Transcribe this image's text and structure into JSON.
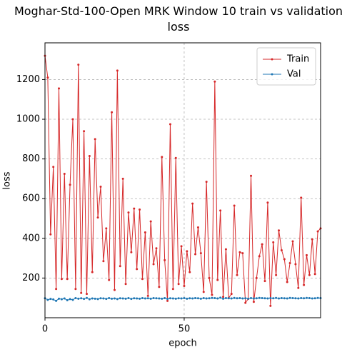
{
  "chart_data": {
    "type": "line",
    "title": "Moghar-Std-100-Open MRK Window 10 train vs validation loss",
    "xlabel": "epoch",
    "ylabel": "loss",
    "x": [
      0,
      1,
      2,
      3,
      4,
      5,
      6,
      7,
      8,
      9,
      10,
      11,
      12,
      13,
      14,
      15,
      16,
      17,
      18,
      19,
      20,
      21,
      22,
      23,
      24,
      25,
      26,
      27,
      28,
      29,
      30,
      31,
      32,
      33,
      34,
      35,
      36,
      37,
      38,
      39,
      40,
      41,
      42,
      43,
      44,
      45,
      46,
      47,
      48,
      49,
      50,
      51,
      52,
      53,
      54,
      55,
      56,
      57,
      58,
      59,
      60,
      61,
      62,
      63,
      64,
      65,
      66,
      67,
      68,
      69,
      70,
      71,
      72,
      73,
      74,
      75,
      76,
      77,
      78,
      79,
      80,
      81,
      82,
      83,
      84,
      85,
      86,
      87,
      88,
      89,
      90,
      91,
      92,
      93,
      94,
      95,
      96,
      97,
      98,
      99
    ],
    "series": [
      {
        "name": "Train",
        "color": "#d62728",
        "values": [
          1320,
          1210,
          420,
          760,
          145,
          1155,
          195,
          725,
          195,
          670,
          1000,
          145,
          1275,
          125,
          940,
          120,
          815,
          230,
          900,
          505,
          660,
          285,
          450,
          190,
          1035,
          140,
          1245,
          260,
          700,
          170,
          530,
          330,
          550,
          245,
          545,
          195,
          430,
          110,
          485,
          270,
          350,
          155,
          810,
          290,
          85,
          975,
          145,
          805,
          170,
          360,
          160,
          335,
          230,
          575,
          320,
          455,
          325,
          130,
          685,
          200,
          115,
          1190,
          190,
          540,
          105,
          345,
          100,
          120,
          565,
          215,
          330,
          325,
          75,
          95,
          715,
          80,
          200,
          310,
          370,
          185,
          580,
          60,
          380,
          215,
          440,
          340,
          295,
          180,
          275,
          385,
          270,
          150,
          605,
          165,
          315,
          215,
          395,
          220,
          435,
          450
        ]
      },
      {
        "name": "Val",
        "color": "#1f77b4",
        "values": [
          98,
          90,
          95,
          92,
          85,
          96,
          93,
          97,
          88,
          94,
          90,
          99,
          96,
          98,
          95,
          100,
          93,
          97,
          96,
          94,
          98,
          97,
          95,
          99,
          96,
          97,
          94,
          98,
          97,
          96,
          99,
          95,
          98,
          97,
          96,
          99,
          97,
          98,
          96,
          99,
          98,
          97,
          96,
          99,
          95,
          98,
          97,
          96,
          98,
          97,
          99,
          96,
          98,
          97,
          99,
          98,
          96,
          99,
          97,
          98,
          100,
          99,
          97,
          101,
          96,
          99,
          98,
          97,
          100,
          98,
          99,
          97,
          98,
          96,
          99,
          97,
          98,
          100,
          99,
          98,
          97,
          99,
          98,
          100,
          97,
          99,
          98,
          97,
          100,
          99,
          98,
          97,
          99,
          98,
          100,
          99,
          97,
          98,
          100,
          99
        ]
      }
    ],
    "xlim": [
      0,
      99
    ],
    "ylim": [
      0,
      1385
    ],
    "xticks": [
      0,
      50
    ],
    "yticks": [
      200,
      400,
      600,
      800,
      1000,
      1200
    ],
    "grid": true,
    "legend": "upper right"
  }
}
